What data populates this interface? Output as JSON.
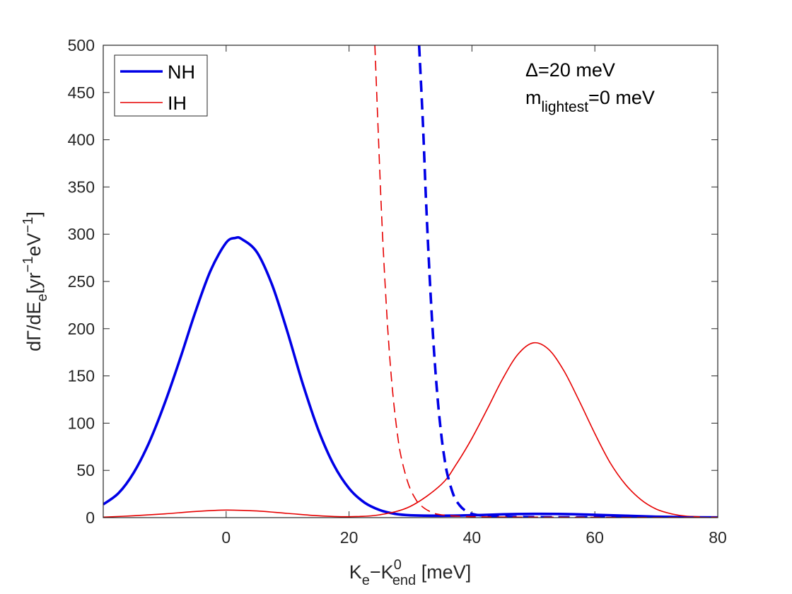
{
  "chart_data": {
    "type": "line",
    "xlabel": {
      "main": "K",
      "sub1": "e",
      "mid": "−K",
      "sup": "0",
      "sub2": "end",
      "tail": " [meV]"
    },
    "ylabel": {
      "p1": "dΓ/dE",
      "sub": "e",
      "p2": "[yr",
      "sup1": "−1",
      "p3": "eV",
      "sup2": "−1",
      "p4": "]"
    },
    "xlim": [
      -20,
      80
    ],
    "ylim": [
      0,
      500
    ],
    "xticks": [
      0,
      20,
      40,
      60,
      80
    ],
    "yticks": [
      0,
      50,
      100,
      150,
      200,
      250,
      300,
      350,
      400,
      450,
      500
    ],
    "grid": false,
    "legend_position": "top-left",
    "annotation": {
      "line1": "Δ=20 meV",
      "line2_main": "m",
      "line2_sub": "lightest",
      "line2_tail": "=0 meV"
    },
    "series": [
      {
        "name": "NH",
        "color": "#0000e6",
        "style": "solid",
        "width": "thick",
        "in_legend": true,
        "x": [
          -20,
          -17.5,
          -15,
          -12.5,
          -10,
          -7.5,
          -5,
          -2.5,
          0,
          1.5,
          2.5,
          5,
          7.5,
          10,
          12.5,
          15,
          17.5,
          20,
          22.5,
          25,
          27.5,
          30,
          35,
          40,
          45,
          50,
          55,
          60,
          65,
          70,
          75,
          80
        ],
        "y": [
          14,
          26,
          48,
          80,
          121,
          168,
          218,
          262,
          291,
          296,
          295,
          281,
          246,
          196,
          141,
          93,
          56,
          31,
          16,
          8,
          4,
          2.5,
          2,
          2.5,
          3.5,
          4,
          3.8,
          3,
          2,
          1,
          0.5,
          0.2
        ]
      },
      {
        "name": "IH",
        "color": "#e60000",
        "style": "solid",
        "width": "thin",
        "in_legend": true,
        "x": [
          -20,
          -15,
          -10,
          -5,
          0,
          5,
          10,
          15,
          20,
          25,
          30,
          35,
          37.5,
          40,
          42.5,
          45,
          47.5,
          50,
          52.5,
          55,
          57.5,
          60,
          62.5,
          65,
          67.5,
          70,
          72.5,
          75,
          80
        ],
        "y": [
          0.5,
          2,
          4,
          6.5,
          8,
          7,
          4.5,
          2,
          1,
          3,
          12,
          35,
          57,
          84,
          115,
          147,
          173,
          185,
          178,
          155,
          123,
          89,
          58,
          35,
          19,
          9,
          4,
          1.5,
          0.3
        ]
      },
      {
        "name": "NH decay (dashed)",
        "color": "#0000e6",
        "style": "dashed",
        "width": "thick",
        "in_legend": false,
        "x": [
          31.4,
          32,
          32.5,
          33,
          33.5,
          34,
          34.5,
          35,
          35.5,
          36,
          37,
          38,
          39,
          40,
          42,
          45,
          50,
          60,
          70,
          80
        ],
        "y": [
          500,
          420,
          340,
          270,
          210,
          160,
          120,
          88,
          64,
          46,
          24,
          13,
          7,
          4,
          2,
          1,
          0.6,
          0.3,
          0.1,
          0
        ]
      },
      {
        "name": "IH decay (dashed)",
        "color": "#e60000",
        "style": "dashed",
        "width": "thin",
        "in_legend": false,
        "x": [
          24.2,
          24.8,
          25.3,
          25.8,
          26.3,
          26.8,
          27.3,
          27.8,
          28.3,
          29,
          29.8,
          30.7,
          31.5,
          33,
          35,
          40,
          50,
          60,
          70,
          80
        ],
        "y": [
          500,
          400,
          320,
          255,
          200,
          155,
          120,
          92,
          70,
          50,
          33,
          21,
          14,
          7,
          3,
          1,
          0.5,
          0.3,
          0.1,
          0
        ]
      }
    ]
  }
}
